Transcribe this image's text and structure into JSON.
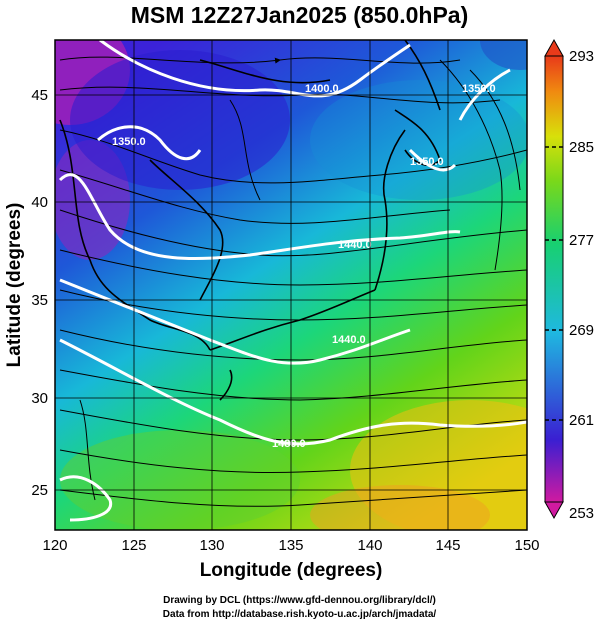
{
  "title": "MSM 12Z27Jan2025 (850.0hPa)",
  "axes": {
    "xlabel": "Longitude (degrees)",
    "ylabel": "Latitude  (degrees)",
    "xticks": [
      "120",
      "125",
      "130",
      "135",
      "140",
      "145",
      "150"
    ],
    "yticks": [
      "25",
      "30",
      "35",
      "40",
      "45"
    ],
    "xlim": [
      120,
      150
    ],
    "ylim": [
      22.4,
      47.6
    ]
  },
  "colorbar": {
    "ticks": [
      "293",
      "285",
      "277",
      "269",
      "261",
      "253"
    ],
    "range": [
      253,
      293
    ],
    "colors": [
      "#d01aa0",
      "#3a1fd2",
      "#1fb8e0",
      "#18d070",
      "#7ad81a",
      "#d8e00a",
      "#f08a10",
      "#e83a1a"
    ]
  },
  "contours": {
    "labels": [
      "1400.0",
      "1350.0",
      "1350.0",
      "1350.0",
      "1440.0",
      "1440.0",
      "1480.0"
    ]
  },
  "credits": {
    "line1": "Drawing by DCL (https://www.gfd-dennou.org/library/dcl/)",
    "line2": "Data from http://database.rish.kyoto-u.ac.jp/arch/jmadata/"
  },
  "icons": [
    "colorbar-up-arrow-icon",
    "colorbar-down-arrow-icon"
  ]
}
